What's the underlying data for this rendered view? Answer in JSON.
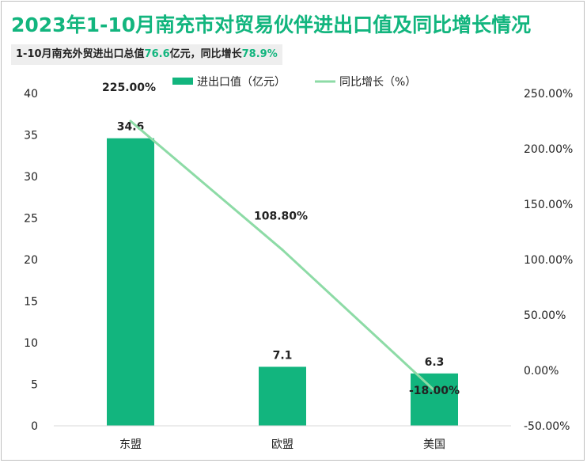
{
  "title": "2023年1-10月南充市对贸易伙伴进出口值及同比增长情况",
  "subtitle": {
    "prefix": "1-10月南充外贸进出口总值",
    "total_value": "76.6",
    "mid": "亿元，同比增长",
    "growth_value": "78.9%"
  },
  "colors": {
    "bar": "#12b57e",
    "line": "#8ddba6",
    "title": "#12b57e"
  },
  "chart_data": {
    "type": "bar",
    "categories": [
      "东盟",
      "欧盟",
      "美国"
    ],
    "series": [
      {
        "name": "进出口值（亿元）",
        "type": "bar",
        "axis": "left",
        "values": [
          34.6,
          7.1,
          6.3
        ],
        "labels": [
          "34.6",
          "7.1",
          "6.3"
        ]
      },
      {
        "name": "同比增长（%）",
        "type": "line",
        "axis": "right",
        "values": [
          225.0,
          108.8,
          -18.0
        ],
        "labels": [
          "225.00%",
          "108.80%",
          "-18.00%"
        ]
      }
    ],
    "y_left": {
      "min": 0,
      "max": 40,
      "ticks": [
        "0",
        "5",
        "10",
        "15",
        "20",
        "25",
        "30",
        "35",
        "40"
      ]
    },
    "y_right": {
      "min": -50,
      "max": 250,
      "ticks": [
        "-50.00%",
        "0.00%",
        "50.00%",
        "100.00%",
        "150.00%",
        "200.00%",
        "250.00%"
      ]
    },
    "legend_position": "top",
    "grid": false
  }
}
